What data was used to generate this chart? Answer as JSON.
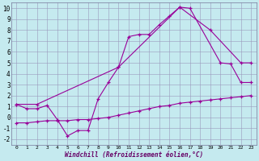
{
  "background_color": "#c5eaef",
  "grid_color": "#9999bb",
  "line_color": "#990099",
  "xlabel": "Windchill (Refroidissement éolien,°C)",
  "ylim": [
    -2.5,
    10.5
  ],
  "xlim": [
    -0.5,
    23.5
  ],
  "yticks": [
    -2,
    -1,
    0,
    1,
    2,
    3,
    4,
    5,
    6,
    7,
    8,
    9,
    10
  ],
  "xticks": [
    0,
    1,
    2,
    3,
    4,
    5,
    6,
    7,
    8,
    9,
    10,
    11,
    12,
    13,
    14,
    15,
    16,
    17,
    18,
    19,
    20,
    21,
    22,
    23
  ],
  "line1_x": [
    0,
    1,
    2,
    3,
    4,
    5,
    6,
    7,
    8,
    9,
    10,
    11,
    12,
    13,
    14,
    15,
    16,
    17,
    20,
    21,
    22,
    23
  ],
  "line1_y": [
    1.2,
    0.8,
    0.8,
    1.1,
    -0.2,
    -1.7,
    -1.2,
    -1.2,
    1.7,
    3.2,
    4.6,
    7.4,
    7.6,
    7.6,
    8.5,
    9.3,
    10.1,
    10.0,
    5.0,
    4.9,
    3.2,
    3.2
  ],
  "line2_x": [
    0,
    2,
    10,
    16,
    19,
    22,
    23
  ],
  "line2_y": [
    1.2,
    1.2,
    4.6,
    10.1,
    8.0,
    5.0,
    5.0
  ],
  "line3_x": [
    0,
    1,
    2,
    3,
    4,
    5,
    6,
    7,
    8,
    9,
    10,
    11,
    12,
    13,
    14,
    15,
    16,
    17,
    18,
    19,
    20,
    21,
    22,
    23
  ],
  "line3_y": [
    -0.5,
    -0.5,
    -0.4,
    -0.3,
    -0.3,
    -0.3,
    -0.2,
    -0.2,
    -0.1,
    0.0,
    0.2,
    0.4,
    0.6,
    0.8,
    1.0,
    1.1,
    1.3,
    1.4,
    1.5,
    1.6,
    1.7,
    1.8,
    1.9,
    2.0
  ]
}
